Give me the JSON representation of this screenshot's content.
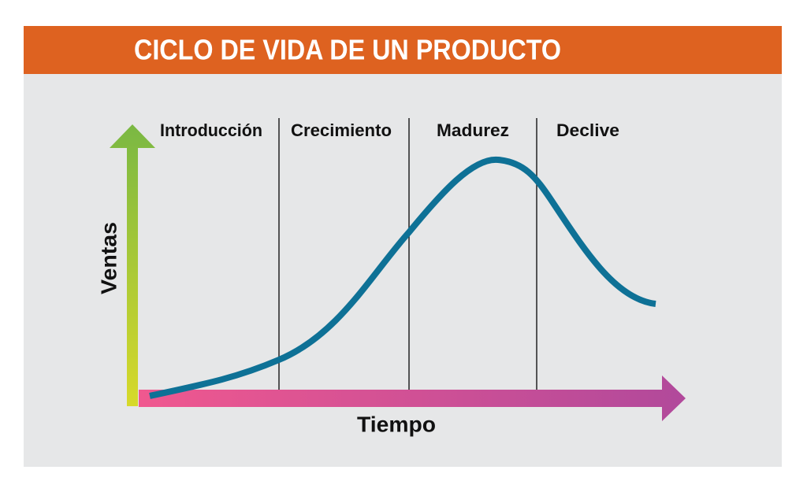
{
  "header": {
    "title": "CICLO DE VIDA DE UN PRODUCTO"
  },
  "stages": [
    {
      "label": "Introducción"
    },
    {
      "label": "Crecimiento"
    },
    {
      "label": "Madurez"
    },
    {
      "label": "Declive"
    }
  ],
  "axes": {
    "y_label": "Ventas",
    "x_label": "Tiempo"
  }
}
